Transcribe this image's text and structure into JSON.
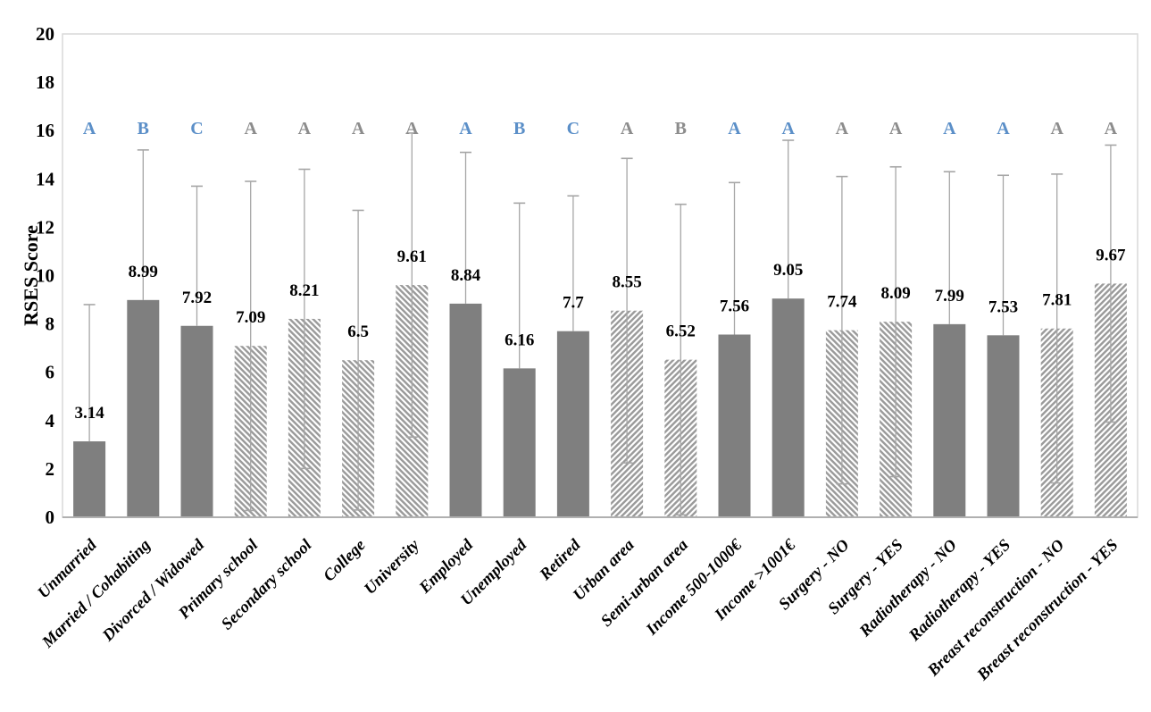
{
  "chart_data": {
    "type": "bar",
    "title": "",
    "xlabel": "",
    "ylabel": "RSES Score",
    "ylim": [
      0,
      20
    ],
    "yticks": [
      0,
      2,
      4,
      6,
      8,
      10,
      12,
      14,
      16,
      18,
      20
    ],
    "grid": false,
    "legend": "none",
    "categories": [
      "Unmarried",
      "Married / Cohabiting",
      "Divorced / Widowed",
      "Primary school",
      "Secondary school",
      "College",
      "University",
      "Employed",
      "Unemployed",
      "Retired",
      "Urban area",
      "Semi-urban area",
      "Income 500-1000€",
      "Income >1001€",
      "Surgery - NO",
      "Surgery - YES",
      "Radiotherapy - NO",
      "Radiotherapy - YES",
      "Breast reconstruction - NO",
      "Breast reconstruction - YES"
    ],
    "values": [
      3.14,
      8.99,
      7.92,
      7.09,
      8.21,
      6.5,
      9.61,
      8.84,
      6.16,
      7.7,
      8.55,
      6.52,
      7.56,
      9.05,
      7.74,
      8.09,
      7.99,
      7.53,
      7.81,
      9.67
    ],
    "error_upper": [
      8.8,
      15.2,
      13.7,
      13.9,
      14.4,
      12.7,
      15.9,
      15.1,
      13.0,
      13.3,
      14.85,
      12.95,
      13.85,
      15.6,
      14.1,
      14.5,
      14.3,
      14.15,
      14.2,
      15.4
    ],
    "error_lower": [
      null,
      null,
      null,
      0.28,
      2.02,
      0.3,
      3.32,
      null,
      null,
      null,
      2.25,
      0.1,
      null,
      null,
      1.38,
      1.68,
      null,
      null,
      1.42,
      3.94
    ],
    "bar_styles": [
      "solid",
      "solid",
      "solid",
      "hatch-back",
      "hatch-back",
      "hatch-back",
      "hatch-back",
      "solid",
      "solid",
      "solid",
      "hatch-fwd",
      "hatch-fwd",
      "solid",
      "solid",
      "hatch-back",
      "hatch-back",
      "solid",
      "solid",
      "hatch-fwd",
      "hatch-fwd"
    ],
    "letters": [
      "A",
      "B",
      "C",
      "A",
      "A",
      "A",
      "A",
      "A",
      "B",
      "C",
      "A",
      "B",
      "A",
      "A",
      "A",
      "A",
      "A",
      "A",
      "A",
      "A"
    ],
    "letter_colors": [
      "blue",
      "blue",
      "blue",
      "gray",
      "gray",
      "gray",
      "gray",
      "blue",
      "blue",
      "blue",
      "gray",
      "gray",
      "blue",
      "blue",
      "gray",
      "gray",
      "blue",
      "blue",
      "gray",
      "gray"
    ],
    "colors": {
      "bar_solid": "#7f7f7f",
      "hatch_stripe": "#9b9b9b",
      "hatch_background": "#ffffff",
      "error_bar": "#a6a6a6",
      "plot_border": "#d9d9d9",
      "axis_line": "#b0b0b0",
      "letter_blue": "#5b8fc8",
      "letter_gray": "#8c8c8c",
      "label_text": "#000000"
    }
  }
}
